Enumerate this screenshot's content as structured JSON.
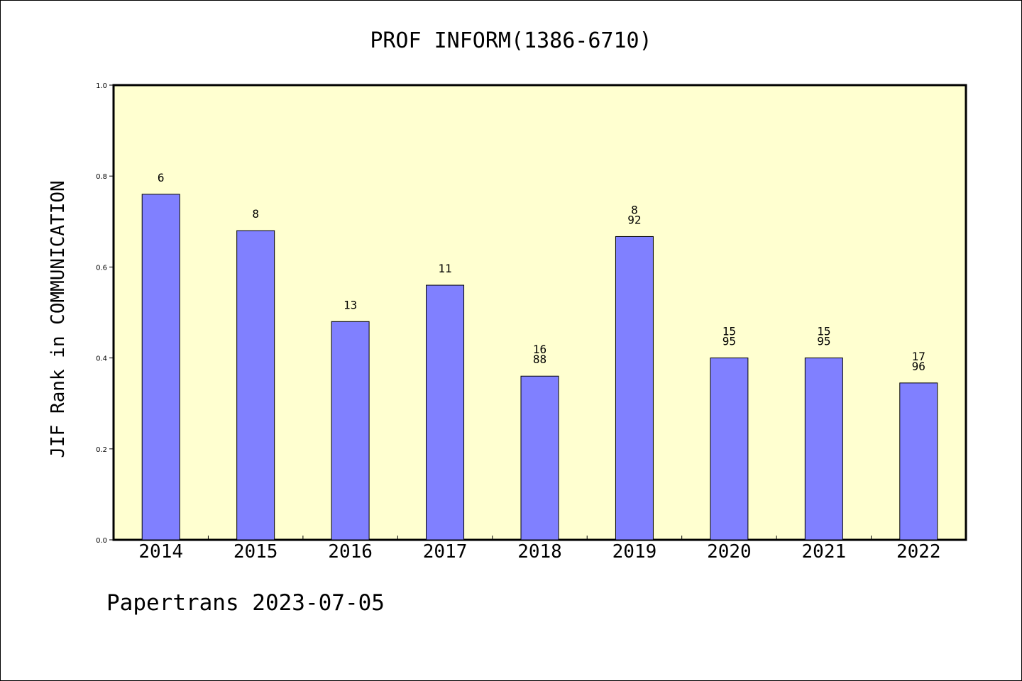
{
  "chart_data": {
    "type": "bar",
    "title": "PROF INFORM(1386-6710)",
    "ylabel": "JIF Rank in COMMUNICATION",
    "xlabel": "",
    "categories": [
      "2014",
      "2015",
      "2016",
      "2017",
      "2018",
      "2019",
      "2020",
      "2021",
      "2022"
    ],
    "values": [
      0.76,
      0.68,
      0.48,
      0.56,
      0.36,
      0.667,
      0.4,
      0.4,
      0.345
    ],
    "bar_labels": [
      [
        "6"
      ],
      [
        "8"
      ],
      [
        "13"
      ],
      [
        "11"
      ],
      [
        "16",
        "88"
      ],
      [
        "8",
        "92"
      ],
      [
        "15",
        "95"
      ],
      [
        "15",
        "95"
      ],
      [
        "17",
        "96"
      ]
    ],
    "ylim": [
      0,
      1.0
    ],
    "yticks": [
      "0.0",
      "0.2",
      "0.4",
      "0.6",
      "0.8",
      "1.0"
    ],
    "grid": false,
    "colors": {
      "bar": "#8080ff",
      "plot_background": "#ffffd0",
      "border": "#000000"
    }
  },
  "footer": "Papertrans 2023-07-05"
}
